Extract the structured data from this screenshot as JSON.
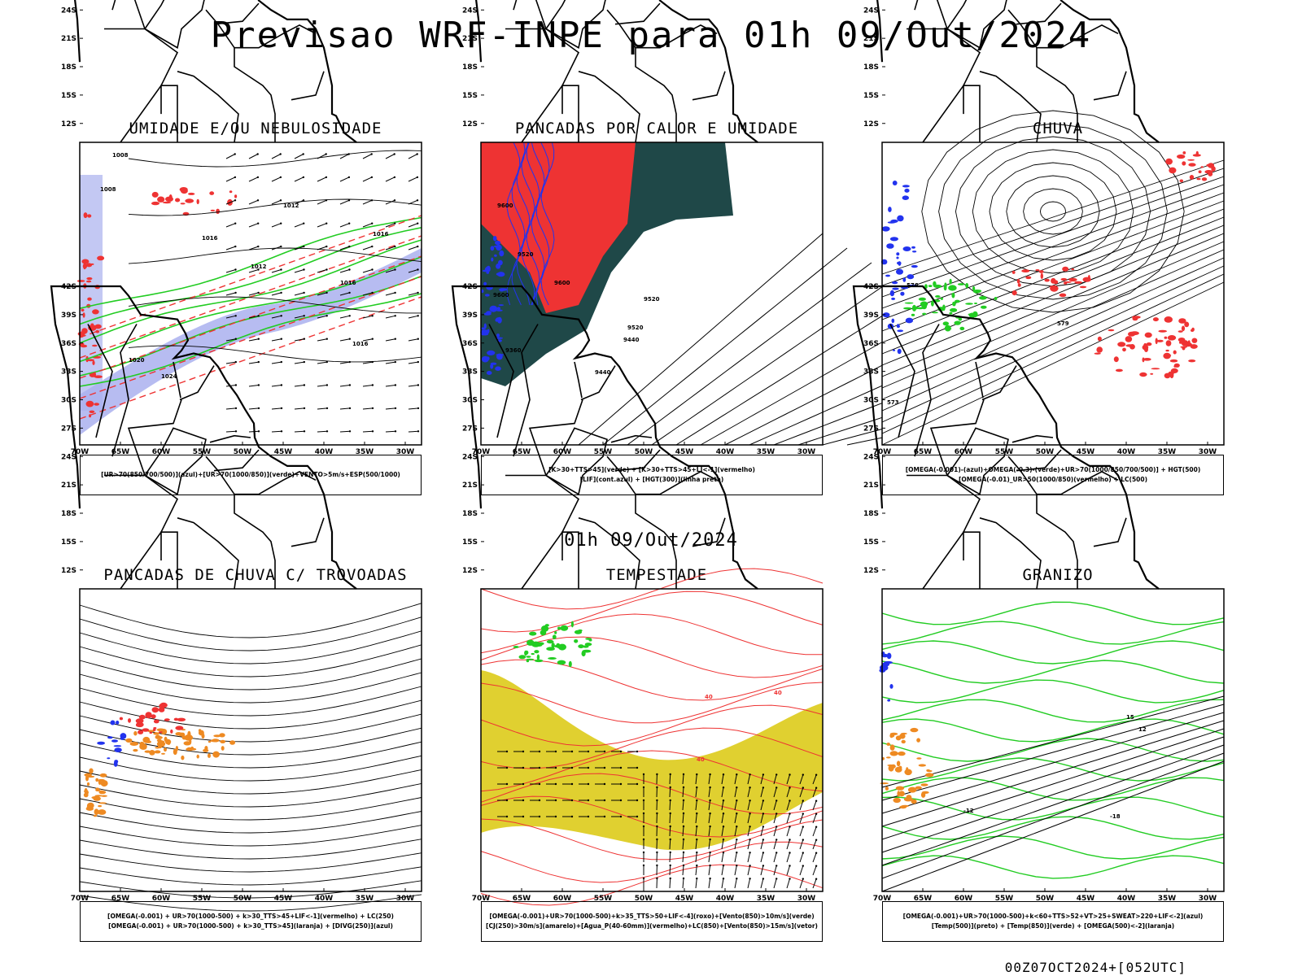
{
  "header": {
    "title": "Previsao WRF-INPE  para 01h 09/Out/2024"
  },
  "middle_label": "01h 09/Out/2024",
  "footer": "00Z07OCT2024+[052UTC]",
  "axes": {
    "lat_labels": [
      "12S",
      "15S",
      "18S",
      "21S",
      "24S",
      "27S",
      "30S",
      "33S",
      "36S",
      "39S",
      "42S"
    ],
    "lon_labels": [
      "70W",
      "65W",
      "60W",
      "55W",
      "50W",
      "45W",
      "40W",
      "35W",
      "30W"
    ]
  },
  "colors": {
    "red": "#ee3333",
    "blue": "#2233ee",
    "green": "#22cc22",
    "lavender": "#aab0ee",
    "darkgreen": "#1f4848",
    "yellow": "#e0d030",
    "orange": "#ee8a22"
  },
  "panels": [
    {
      "title": "UMIDADE E/OU NEBULOSIDADE",
      "legend": [
        "[UR>70(850/700/500)](azul)+[UR>70(1000/850)](verde)+VENTO>5m/s+ESP(500/1000)"
      ],
      "contour_labels": [
        "1008",
        "1008",
        "1012",
        "1016",
        "1016",
        "1012",
        "1016",
        "1020",
        "1024",
        "1016"
      ]
    },
    {
      "title": "PANCADAS POR CALOR E UMIDADE",
      "legend": [
        "[K>30+TTS>45](verde) + [K>30+TTS>45+LI<-1](vermelho)",
        "[LIF](cont.azul) + [HGT(300)](linha preta)"
      ],
      "contour_labels": [
        "9600",
        "9520",
        "9600",
        "9520",
        "9440",
        "9600",
        "9520",
        "9440",
        "9360"
      ]
    },
    {
      "title": "CHUVA",
      "legend": [
        "[OMEGA(-0.001)-(azul)+OMEGA(-0.3)-(verde)+UR>70(1000/850/700/500)] + HGT(500)",
        "[OMEGA(-0.01)_UR>50(1000/850)(vermelho) + LC(500)"
      ],
      "contour_labels": [
        "576",
        "579",
        "573"
      ]
    },
    {
      "title": "PANCADAS DE CHUVA C/ TROVOADAS",
      "legend": [
        "[OMEGA(-0.001) + UR>70(1000-500) + k>30_TTS>45+LIF<-1](vermelho) + LC(250)",
        "[OMEGA(-0.001) + UR>70(1000-500) + k>30_TTS>45](laranja) + [DIVG(250)](azul)"
      ],
      "contour_labels": []
    },
    {
      "title": "TEMPESTADE",
      "legend": [
        "[OMEGA(-0.001)+UR>70(1000-500)+k>35_TTS>50+LIF<-4](roxo)+[Vento(850)>10m/s](verde)",
        "[CJ(250)>30m/s](amarelo)+[Agua_P(40-60mm)](vermelho)+LC(850)+[Vento(850)>15m/s](vetor)"
      ],
      "contour_labels": [
        "40",
        "40",
        "40"
      ]
    },
    {
      "title": "GRANIZO",
      "legend": [
        "[OMEGA(-0.001)+UR>70(1000-500)+k<60+TTS>52+VT>25+SWEAT>220+LIF<-2](azul)",
        "[Temp(500)](preto) + [Temp(850)](verde) + [OMEGA(500)<-2](laranja)"
      ],
      "contour_labels": [
        "15",
        "12",
        "-12",
        "-18"
      ]
    }
  ]
}
